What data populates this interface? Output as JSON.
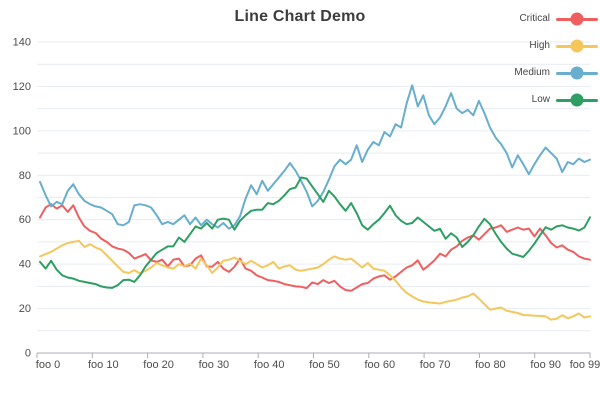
{
  "chart_data": {
    "type": "line",
    "title": "Line Chart Demo",
    "grid": true,
    "colors": {
      "gridline": "#E6ECF3",
      "axis": "#A9ADB3",
      "tick_text": "#4D4D4D",
      "title_text": "#3D3D3D"
    },
    "x_axis": {
      "count": 100,
      "tick_labels": [
        "foo 0",
        "foo 10",
        "foo 20",
        "foo 30",
        "foo 40",
        "foo 50",
        "foo 60",
        "foo 70",
        "foo 80",
        "foo 90",
        "foo 99"
      ]
    },
    "y_axis": {
      "min": 0,
      "max": 140,
      "grid_step": 10,
      "label_step": 20,
      "tick_labels": [
        "0",
        "20",
        "40",
        "60",
        "80",
        "100",
        "120",
        "140"
      ]
    },
    "legend": {
      "position": "top-right",
      "items": [
        "Critical",
        "High",
        "Medium",
        "Low"
      ]
    },
    "series": [
      {
        "name": "Critical",
        "color": "#EF5F5F",
        "values": [
          61,
          65.5,
          67,
          65,
          66.5,
          63.5,
          66.5,
          61,
          57,
          55,
          54,
          51.5,
          50,
          48,
          47,
          46.5,
          45,
          42.5,
          43.5,
          44.5,
          41.7,
          41,
          42,
          39,
          42,
          42.5,
          39,
          39.5,
          42.5,
          44,
          39,
          38.8,
          41,
          38,
          36.5,
          38.8,
          42.5,
          38,
          37,
          35,
          34,
          32.8,
          32.5,
          32,
          31,
          30.5,
          30,
          29.8,
          29.2,
          31.8,
          31,
          32.8,
          31.5,
          32.5,
          30,
          28.3,
          28,
          29.5,
          31,
          31.5,
          33.5,
          34.5,
          35,
          33,
          34.5,
          36.5,
          38.5,
          39.5,
          41.7,
          37.5,
          39.5,
          41.7,
          44.7,
          43.5,
          46.5,
          48,
          50.5,
          52,
          53,
          51,
          53.5,
          56,
          56.5,
          57.5,
          54.5,
          55.5,
          56.5,
          55.5,
          56,
          52.5,
          56,
          53,
          49.5,
          47.5,
          48.5,
          46.5,
          45.5,
          43.5,
          42.5,
          42
        ]
      },
      {
        "name": "High",
        "color": "#F5C75B",
        "values": [
          43.5,
          44.5,
          45.5,
          47,
          48.5,
          49.5,
          50,
          50.5,
          47.7,
          49,
          47.5,
          46.5,
          44,
          41.5,
          39,
          36.5,
          36,
          37.3,
          35.8,
          37,
          38.5,
          40.5,
          39.5,
          38.5,
          38,
          40,
          39,
          40.2,
          38,
          42.5,
          39.5,
          36,
          38.5,
          41.5,
          42,
          43,
          41.5,
          40,
          41.5,
          40,
          38.5,
          39.5,
          41,
          38,
          39,
          39.5,
          37.5,
          37,
          37.5,
          38,
          38.5,
          40,
          42,
          43.5,
          42.5,
          42,
          42.5,
          40.5,
          38.5,
          40.5,
          38,
          37.5,
          37,
          35,
          32.5,
          29.5,
          27,
          25.5,
          24,
          23.2,
          22.8,
          22.5,
          22.3,
          23,
          23.5,
          24,
          25,
          25.5,
          26.8,
          24.5,
          22,
          19.5,
          20,
          20.5,
          19,
          18.5,
          18,
          17.1,
          17,
          16.8,
          16.7,
          16.5,
          15,
          15.5,
          17,
          15.6,
          16.5,
          17.8,
          16,
          16.5
        ]
      },
      {
        "name": "Medium",
        "color": "#68AECE",
        "values": [
          77,
          71,
          66,
          68,
          67,
          73,
          76,
          71.5,
          68.5,
          67,
          66,
          65.5,
          64,
          62.5,
          58,
          57.5,
          59,
          66.5,
          67,
          66.5,
          65.5,
          62,
          58,
          59,
          58,
          60,
          62,
          58,
          61,
          57.5,
          60,
          58,
          56.5,
          58.5,
          56,
          57.5,
          61.5,
          69.5,
          75.5,
          71.5,
          77.5,
          73,
          76,
          79,
          82,
          85.5,
          82,
          77.5,
          72.5,
          66,
          68.5,
          72.5,
          78,
          84,
          87,
          85,
          87,
          93.5,
          86,
          91.5,
          95,
          93.5,
          99.5,
          97.5,
          103,
          101.5,
          112.5,
          120.5,
          111,
          116,
          107,
          103,
          106,
          111,
          117,
          110,
          108,
          109.5,
          107,
          113.5,
          108,
          101.5,
          97,
          94,
          90,
          83.5,
          89,
          85,
          80.5,
          85,
          89,
          92.5,
          90,
          87.5,
          81.5,
          86,
          85,
          87.5,
          86,
          87
        ]
      },
      {
        "name": "Low",
        "color": "#2E9E63",
        "values": [
          41,
          38,
          41.5,
          37.5,
          35,
          34,
          33.5,
          32.5,
          32,
          31.5,
          31,
          30,
          29.5,
          29.3,
          30.5,
          32.8,
          33,
          32,
          35,
          39,
          42,
          45,
          46.5,
          48,
          48,
          52,
          50,
          53.5,
          57,
          56,
          58.5,
          56,
          60,
          60.5,
          60,
          55.5,
          59.5,
          62,
          64,
          64.5,
          64.5,
          67.5,
          67,
          68.5,
          71,
          73.8,
          74.5,
          79,
          78.5,
          75,
          71.5,
          68,
          73,
          70.5,
          67,
          64,
          67.5,
          63,
          57.5,
          55.5,
          58,
          60,
          63,
          66.3,
          62,
          59.5,
          58,
          58.5,
          61,
          59,
          57,
          55,
          55.9,
          51.4,
          53.9,
          52,
          47.7,
          50,
          53,
          57,
          60.4,
          58,
          53.7,
          50,
          47,
          44.7,
          44,
          43.2,
          46,
          49.2,
          53,
          56.6,
          55.5,
          57,
          57.5,
          56.5,
          56,
          55.1,
          56.5,
          61.1
        ]
      }
    ]
  }
}
